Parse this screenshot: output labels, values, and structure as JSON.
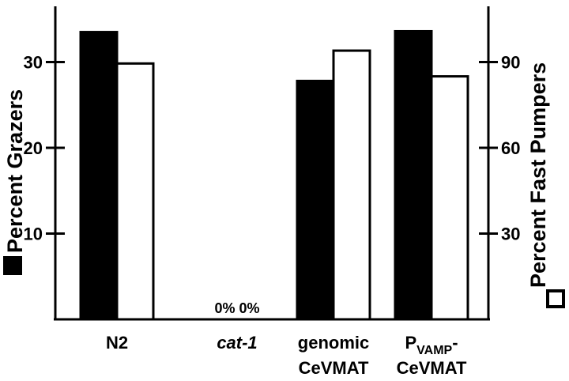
{
  "chart_data": {
    "type": "bar",
    "categories": [
      {
        "lines": [
          {
            "text": "N2"
          }
        ],
        "italic": false
      },
      {
        "lines": [
          {
            "text": "cat-1"
          }
        ],
        "italic": true
      },
      {
        "lines": [
          {
            "text": "genomic"
          },
          {
            "text": "CeVMAT"
          }
        ],
        "italic": false
      },
      {
        "lines": [
          {
            "text": "P",
            "sub": "VAMP",
            "after": "-"
          },
          {
            "text": "CeVMAT"
          }
        ],
        "italic": false
      }
    ],
    "series": [
      {
        "name": "Percent Grazers",
        "axis": "left",
        "style": "filled",
        "color": "#000000",
        "values": [
          33.5,
          0,
          27.8,
          33.6
        ]
      },
      {
        "name": "Percent Fast Pumpers",
        "axis": "right",
        "style": "open",
        "color": "#ffffff",
        "values": [
          89.5,
          0,
          94,
          85
        ]
      }
    ],
    "left_axis": {
      "title": "Percent Grazers",
      "ylim": [
        0,
        36.5
      ],
      "ticks": [
        10,
        20,
        30
      ],
      "tick_labels": [
        "10",
        "20",
        "30"
      ]
    },
    "right_axis": {
      "title": "Percent Fast Pumpers",
      "ylim": [
        0,
        109.5
      ],
      "ticks": [
        30,
        60,
        90
      ],
      "tick_labels": [
        "30",
        "60",
        "90"
      ]
    },
    "annotations": [
      {
        "category_index": 1,
        "text": "0% 0%"
      }
    ],
    "legend": "symbols beside axis titles",
    "grid": false
  }
}
